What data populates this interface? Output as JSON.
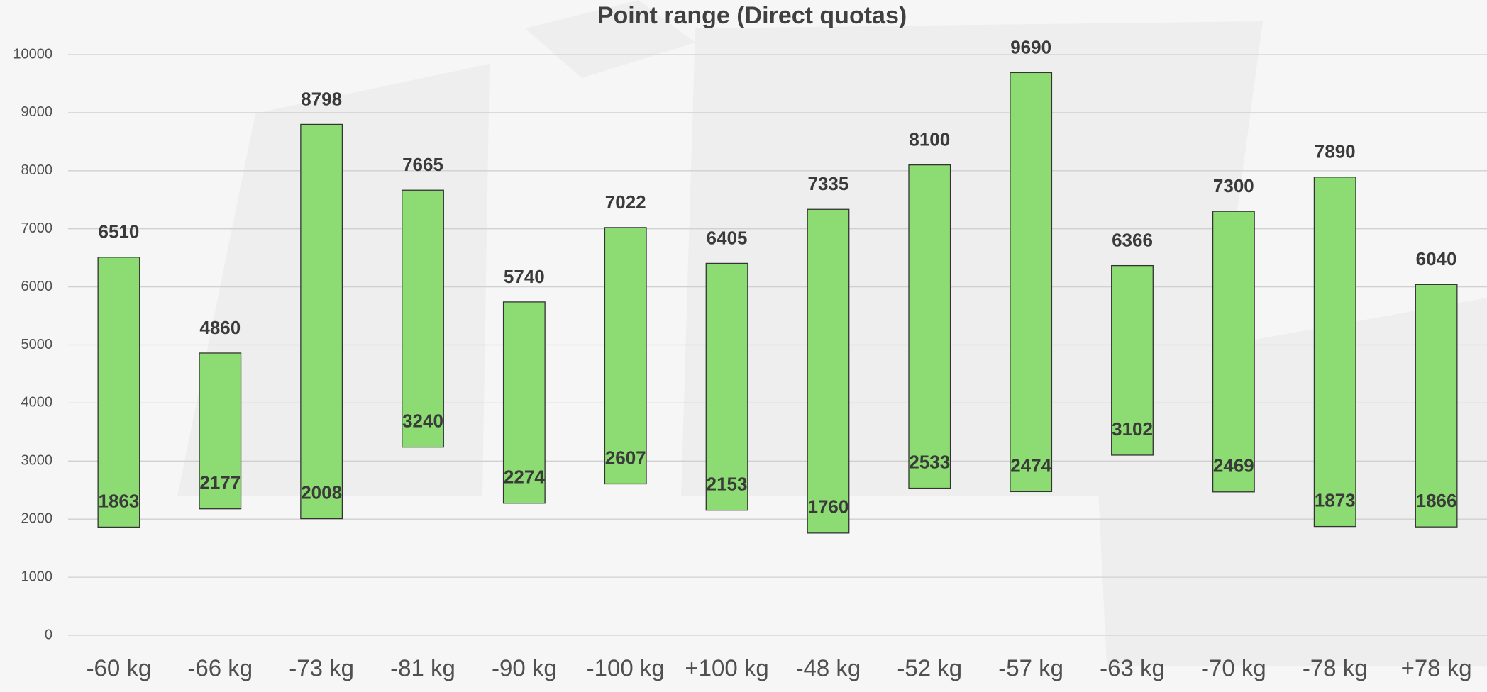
{
  "chart_data": {
    "type": "range",
    "title": "Point range (Direct quotas)",
    "categories": [
      "-60 kg",
      "-66 kg",
      "-73 kg",
      "-81 kg",
      "-90 kg",
      "-100 kg",
      "+100 kg",
      "-48 kg",
      "-52 kg",
      "-57 kg",
      "-63 kg",
      "-70 kg",
      "-78 kg",
      "+78 kg"
    ],
    "low": [
      1863,
      2177,
      2008,
      3240,
      2274,
      2607,
      2153,
      1760,
      2533,
      2474,
      3102,
      2469,
      1873,
      1866
    ],
    "high": [
      6510,
      4860,
      8798,
      7665,
      5740,
      7022,
      6405,
      7335,
      8100,
      9690,
      6366,
      7300,
      7890,
      6040
    ],
    "color": "#8ddc73",
    "ylim": [
      0,
      10000
    ],
    "yticks": [
      0,
      1000,
      2000,
      3000,
      4000,
      5000,
      6000,
      7000,
      8000,
      9000,
      10000
    ],
    "grid": true
  }
}
